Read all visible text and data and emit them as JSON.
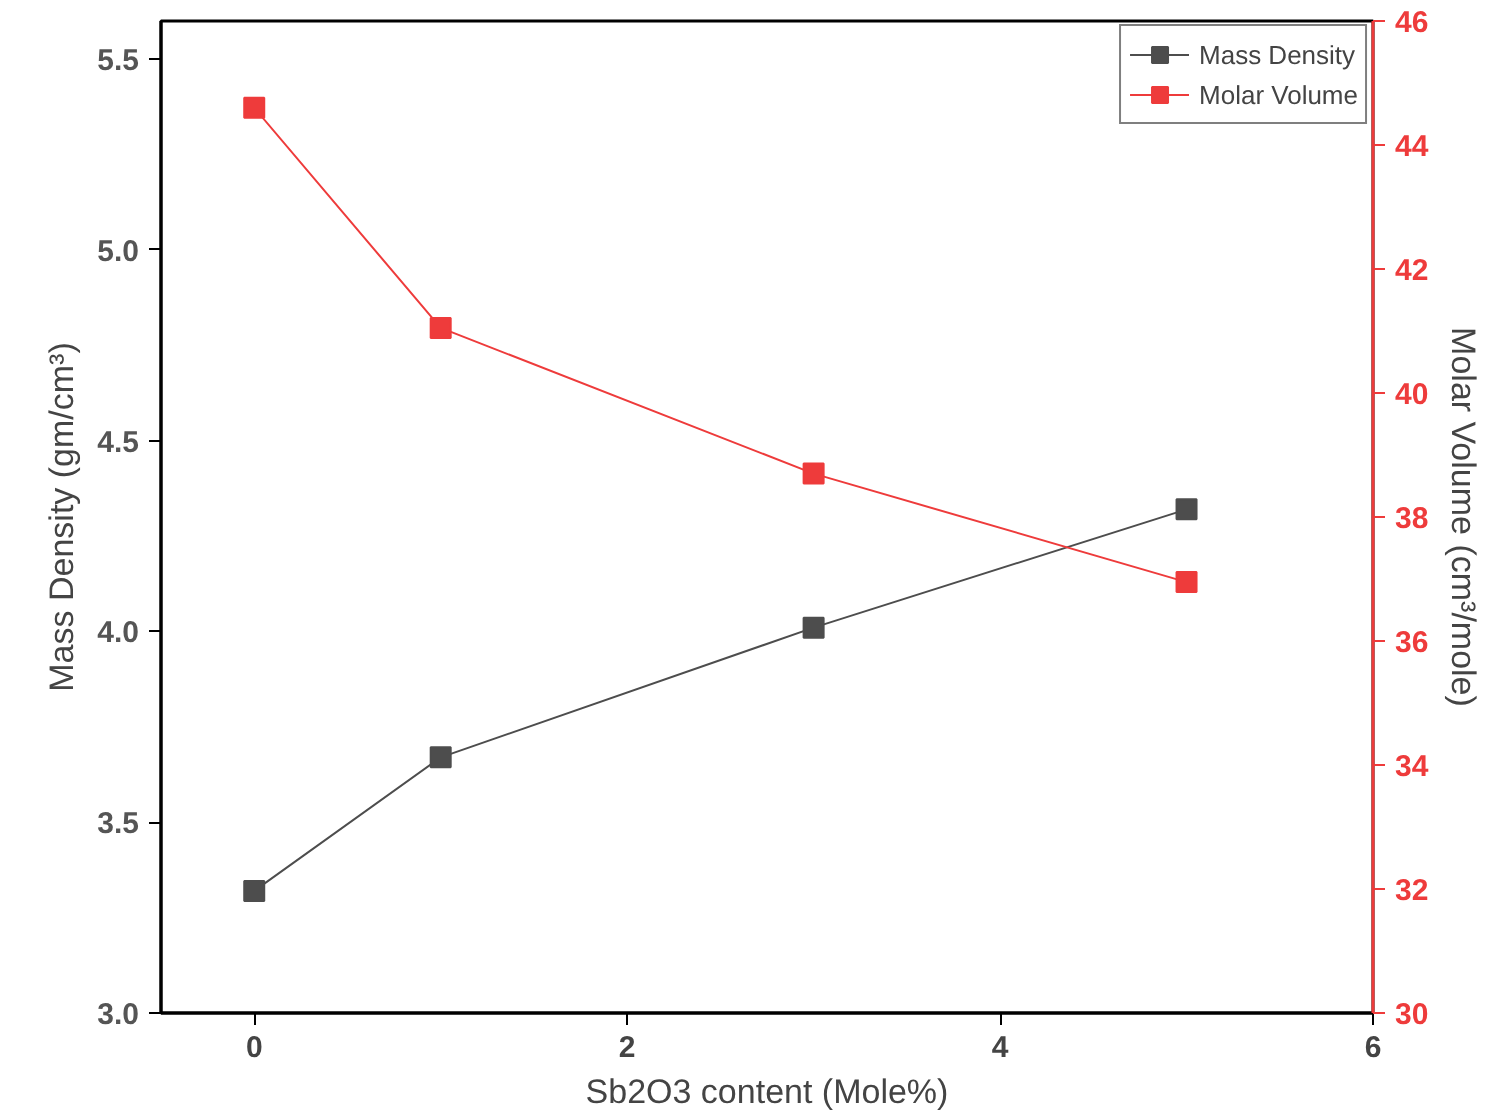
{
  "chart_data": {
    "type": "line",
    "xlabel": "Sb2O3 content (Mole%)",
    "ylabel": "Mass Density (gm/cm³)",
    "y2label": "Molar Volume (cm³/mole)",
    "x": [
      0,
      1,
      3,
      5
    ],
    "series": [
      {
        "name": "Mass Density",
        "color": "#4d4d4d",
        "values": [
          3.32,
          3.67,
          4.01,
          4.32
        ]
      },
      {
        "name": "Molar Volume",
        "color": "#ee3b3b",
        "values": [
          44.6,
          41.05,
          38.7,
          36.95
        ],
        "axis": "y2"
      }
    ],
    "xlim": [
      -0.5,
      6
    ],
    "xticks": [
      0,
      2,
      4,
      6
    ],
    "ylim": [
      3.0,
      5.6
    ],
    "yticks": [
      {
        "value": 3.0,
        "label": "3.0"
      },
      3.5,
      {
        "value": 4.0,
        "label": "4.0"
      },
      4.5,
      {
        "value": 5.0,
        "label": "5.0"
      },
      5.5
    ],
    "y2lim": [
      30,
      46
    ],
    "y2ticks": [
      30,
      32,
      34,
      36,
      38,
      40,
      42,
      44,
      46
    ],
    "grid": false,
    "legend": "top right",
    "marker": "square",
    "line_style": "solid"
  }
}
